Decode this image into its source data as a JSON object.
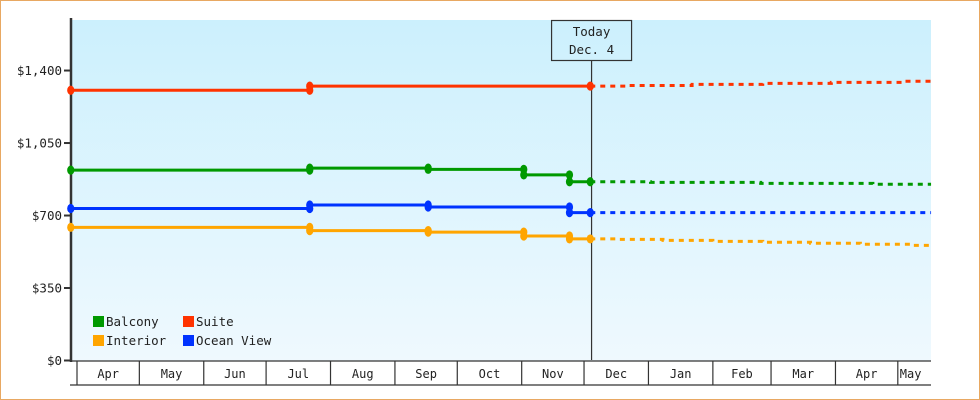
{
  "chart_data": {
    "type": "line",
    "title": "",
    "xlabel": "",
    "ylabel": "",
    "step": true,
    "grid": false,
    "legend_position": "bottom-left inside plot",
    "x_origin_note": "day offsets counted from the start of the first Apr cell",
    "x_end_day": 411,
    "x_months": [
      {
        "label": "Apr",
        "start": 0
      },
      {
        "label": "May",
        "start": 30
      },
      {
        "label": "Jun",
        "start": 61
      },
      {
        "label": "Jul",
        "start": 91
      },
      {
        "label": "Aug",
        "start": 122
      },
      {
        "label": "Sep",
        "start": 153
      },
      {
        "label": "Oct",
        "start": 183
      },
      {
        "label": "Nov",
        "start": 214
      },
      {
        "label": "Dec",
        "start": 244
      },
      {
        "label": "Jan",
        "start": 275
      },
      {
        "label": "Feb",
        "start": 306
      },
      {
        "label": "Mar",
        "start": 334
      },
      {
        "label": "Apr",
        "start": 365
      },
      {
        "label": "May",
        "start": 395
      }
    ],
    "ylim": [
      0,
      1644
    ],
    "y_ticks": [
      {
        "value": 0,
        "label": "$0"
      },
      {
        "value": 350,
        "label": "$350"
      },
      {
        "value": 700,
        "label": "$700"
      },
      {
        "value": 1050,
        "label": "$1,050"
      },
      {
        "value": 1400,
        "label": "$1,400"
      }
    ],
    "today": {
      "line1": "Today",
      "line2": "Dec. 4",
      "day": 247
    },
    "series": [
      {
        "name": "Balcony",
        "color": "#009900",
        "actual": [
          [
            -3,
            919
          ],
          [
            112,
            929
          ],
          [
            169,
            923
          ],
          [
            215,
            896
          ],
          [
            237,
            863
          ],
          [
            247,
            863
          ]
        ],
        "forecast": [
          [
            247,
            863
          ],
          [
            276,
            860
          ],
          [
            329,
            855
          ],
          [
            383,
            851
          ],
          [
            411,
            851
          ]
        ]
      },
      {
        "name": "Suite",
        "color": "#ff3300",
        "actual": [
          [
            -3,
            1305
          ],
          [
            112,
            1325
          ],
          [
            247,
            1325
          ]
        ],
        "forecast": [
          [
            247,
            1325
          ],
          [
            264,
            1328
          ],
          [
            296,
            1333
          ],
          [
            330,
            1338
          ],
          [
            363,
            1343
          ],
          [
            397,
            1348
          ],
          [
            411,
            1348
          ]
        ]
      },
      {
        "name": "Interior",
        "color": "#ffa500",
        "actual": [
          [
            -3,
            643
          ],
          [
            112,
            627
          ],
          [
            169,
            620
          ],
          [
            215,
            601
          ],
          [
            237,
            587
          ],
          [
            247,
            587
          ]
        ],
        "forecast": [
          [
            247,
            587
          ],
          [
            261,
            585
          ],
          [
            282,
            580
          ],
          [
            306,
            575
          ],
          [
            330,
            571
          ],
          [
            353,
            566
          ],
          [
            377,
            561
          ],
          [
            401,
            556
          ],
          [
            411,
            556
          ]
        ]
      },
      {
        "name": "Ocean View",
        "color": "#0033ff",
        "actual": [
          [
            -3,
            734
          ],
          [
            112,
            751
          ],
          [
            169,
            741
          ],
          [
            237,
            714
          ],
          [
            247,
            714
          ]
        ],
        "forecast": [
          [
            247,
            714
          ],
          [
            411,
            714
          ]
        ]
      }
    ]
  },
  "legend": {
    "items": [
      {
        "label": "Balcony",
        "color": "#009900"
      },
      {
        "label": "Suite",
        "color": "#ff3300"
      },
      {
        "label": "Interior",
        "color": "#ffa500"
      },
      {
        "label": "Ocean View",
        "color": "#0033ff"
      }
    ]
  },
  "colors": {
    "frame_border": "#e8a862",
    "plot_top": "#ccf0fd",
    "plot_bottom": "#eff9fe",
    "axis": "#333333"
  }
}
